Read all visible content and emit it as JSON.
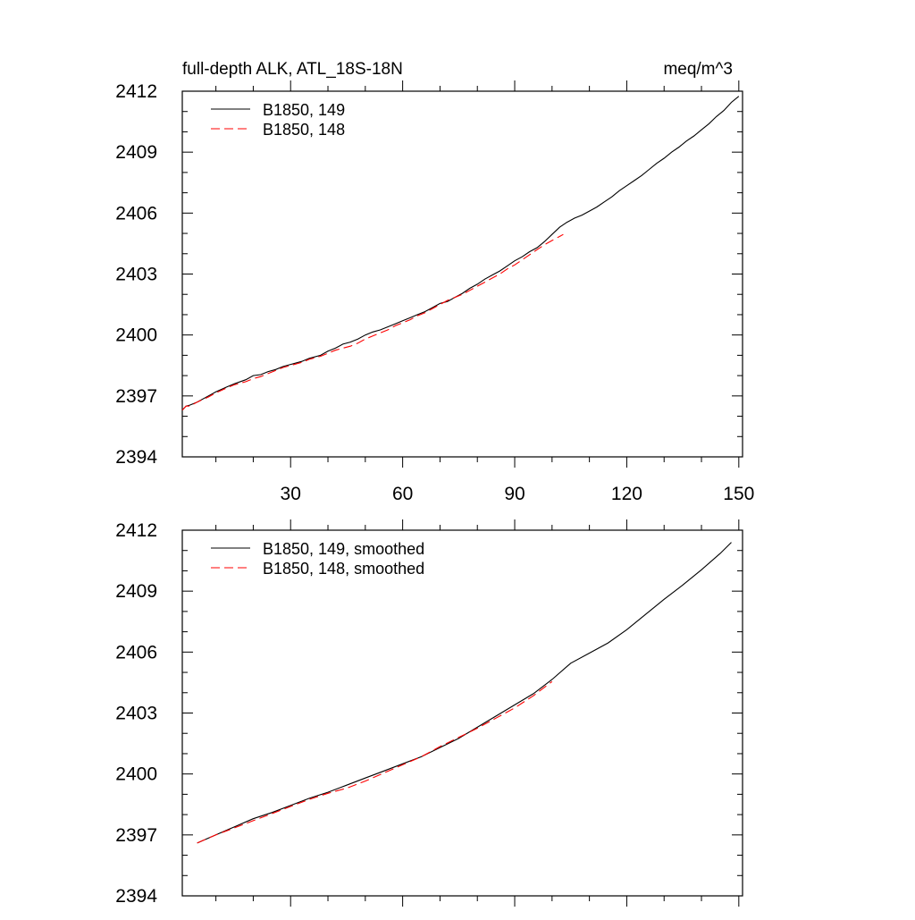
{
  "figure": {
    "title_left": "full-depth ALK, ATL_18S-18N",
    "title_right": "meq/m^3"
  },
  "chart_data": [
    {
      "type": "line",
      "title": "full-depth ALK, ATL_18S-18N",
      "units": "meq/m^3",
      "xlim": [
        1,
        151
      ],
      "ylim": [
        2394,
        2412
      ],
      "x_ticks": [
        30,
        60,
        90,
        120,
        150
      ],
      "y_ticks": [
        2394,
        2397,
        2400,
        2403,
        2406,
        2409,
        2412
      ],
      "x_tick_labels_shown": true,
      "grid": false,
      "legend_position": "top-left",
      "series": [
        {
          "name": "B1850, 149",
          "color": "#000000",
          "dash": "solid",
          "x": [
            1,
            2,
            3,
            5,
            8,
            10,
            13,
            15,
            18,
            20,
            22,
            24,
            26,
            28,
            30,
            33,
            35,
            38,
            40,
            42,
            44,
            46,
            48,
            50,
            52,
            54,
            56,
            58,
            60,
            62,
            64,
            66,
            68,
            70,
            72,
            74,
            76,
            78,
            80,
            82,
            84,
            86,
            88,
            90,
            92,
            94,
            96,
            98,
            100,
            102,
            104,
            106,
            108,
            110,
            112,
            114,
            116,
            118,
            120,
            122,
            124,
            126,
            128,
            130,
            132,
            134,
            136,
            138,
            140,
            142,
            144,
            146,
            148,
            150
          ],
          "y": [
            2396.3,
            2396.5,
            2396.55,
            2396.7,
            2397.0,
            2397.2,
            2397.45,
            2397.6,
            2397.8,
            2398.0,
            2398.05,
            2398.2,
            2398.3,
            2398.45,
            2398.55,
            2398.7,
            2398.85,
            2399.0,
            2399.2,
            2399.35,
            2399.55,
            2399.65,
            2399.8,
            2400.0,
            2400.15,
            2400.25,
            2400.4,
            2400.55,
            2400.7,
            2400.85,
            2401.0,
            2401.15,
            2401.35,
            2401.55,
            2401.65,
            2401.85,
            2402.05,
            2402.3,
            2402.5,
            2402.75,
            2402.95,
            2403.15,
            2403.4,
            2403.65,
            2403.85,
            2404.1,
            2404.3,
            2404.6,
            2404.95,
            2405.3,
            2405.55,
            2405.75,
            2405.9,
            2406.1,
            2406.3,
            2406.55,
            2406.8,
            2407.1,
            2407.35,
            2407.6,
            2407.85,
            2408.15,
            2408.45,
            2408.7,
            2409.0,
            2409.25,
            2409.55,
            2409.8,
            2410.1,
            2410.4,
            2410.75,
            2411.05,
            2411.45,
            2411.75
          ]
        },
        {
          "name": "B1850, 148",
          "color": "#ff0000",
          "dash": "dashed",
          "x": [
            1,
            2,
            3,
            5,
            8,
            10,
            13,
            15,
            18,
            20,
            22,
            24,
            26,
            28,
            30,
            33,
            35,
            38,
            40,
            42,
            44,
            46,
            48,
            50,
            52,
            54,
            56,
            58,
            60,
            62,
            64,
            66,
            68,
            70,
            72,
            74,
            76,
            78,
            80,
            82,
            84,
            86,
            88,
            90,
            92,
            94,
            96,
            98,
            100,
            102,
            103
          ],
          "y": [
            2396.3,
            2396.5,
            2396.5,
            2396.7,
            2396.95,
            2397.15,
            2397.4,
            2397.55,
            2397.7,
            2397.85,
            2397.95,
            2398.1,
            2398.25,
            2398.4,
            2398.5,
            2398.65,
            2398.8,
            2398.95,
            2399.1,
            2399.25,
            2399.35,
            2399.45,
            2399.6,
            2399.8,
            2399.95,
            2400.1,
            2400.25,
            2400.45,
            2400.6,
            2400.75,
            2400.95,
            2401.1,
            2401.3,
            2401.5,
            2401.7,
            2401.85,
            2402.0,
            2402.2,
            2402.4,
            2402.6,
            2402.8,
            2403.0,
            2403.25,
            2403.45,
            2403.7,
            2403.95,
            2404.2,
            2404.45,
            2404.65,
            2404.85,
            2404.95
          ]
        }
      ]
    },
    {
      "type": "line",
      "xlim": [
        1,
        151
      ],
      "ylim": [
        2394,
        2412
      ],
      "x_ticks": [
        30,
        60,
        90,
        120,
        150
      ],
      "y_ticks": [
        2394,
        2397,
        2400,
        2403,
        2406,
        2409,
        2412
      ],
      "x_tick_labels_shown": false,
      "grid": false,
      "legend_position": "top-left",
      "series": [
        {
          "name": "B1850, 149, smoothed",
          "color": "#000000",
          "dash": "solid",
          "x": [
            5,
            10,
            15,
            20,
            25,
            30,
            35,
            40,
            45,
            50,
            55,
            60,
            65,
            70,
            75,
            80,
            85,
            90,
            95,
            100,
            105,
            110,
            115,
            120,
            125,
            130,
            135,
            140,
            145,
            148
          ],
          "y": [
            2396.6,
            2397.0,
            2397.4,
            2397.8,
            2398.1,
            2398.45,
            2398.8,
            2399.1,
            2399.45,
            2399.8,
            2400.15,
            2400.5,
            2400.85,
            2401.3,
            2401.75,
            2402.3,
            2402.85,
            2403.4,
            2403.95,
            2404.65,
            2405.45,
            2405.95,
            2406.45,
            2407.1,
            2407.85,
            2408.6,
            2409.3,
            2410.05,
            2410.85,
            2411.4
          ]
        },
        {
          "name": "B1850, 148, smoothed",
          "color": "#ff0000",
          "dash": "dashed",
          "x": [
            5,
            10,
            15,
            20,
            25,
            30,
            35,
            40,
            45,
            50,
            55,
            60,
            65,
            70,
            75,
            80,
            85,
            90,
            95,
            100
          ],
          "y": [
            2396.6,
            2397.0,
            2397.35,
            2397.7,
            2398.05,
            2398.4,
            2398.75,
            2399.05,
            2399.3,
            2399.65,
            2400.05,
            2400.45,
            2400.85,
            2401.35,
            2401.8,
            2402.25,
            2402.75,
            2403.25,
            2403.85,
            2404.55
          ]
        }
      ]
    }
  ]
}
